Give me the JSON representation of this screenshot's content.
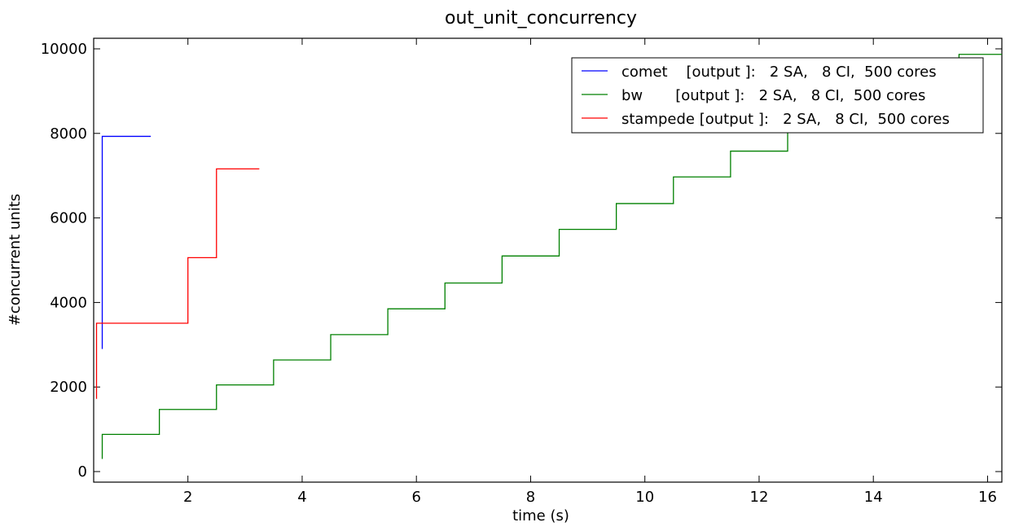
{
  "chart_data": {
    "type": "line",
    "title": "out_unit_concurrency",
    "xlabel": "time (s)",
    "ylabel": "#concurrent units",
    "xlim": [
      0.35,
      16.25
    ],
    "ylim": [
      -250,
      10250
    ],
    "xticks": [
      2,
      4,
      6,
      8,
      10,
      12,
      14,
      16
    ],
    "yticks": [
      0,
      2000,
      4000,
      6000,
      8000,
      10000
    ],
    "grid": false,
    "legend_position": "top-right",
    "step": "post",
    "series": [
      {
        "name": "comet    [output ]:   2 SA,   8 CI,  500 cores",
        "color": "#0000ff",
        "x": [
          0.5,
          0.5,
          1.35
        ],
        "y": [
          2900,
          7930,
          7930
        ]
      },
      {
        "name": "bw       [output ]:   2 SA,   8 CI,  500 cores",
        "color": "#008000",
        "x": [
          0.5,
          0.5,
          1.5,
          2.5,
          3.5,
          4.5,
          5.5,
          6.5,
          7.5,
          8.5,
          9.5,
          10.5,
          11.5,
          12.5,
          13.5,
          14.5,
          15.5,
          16.25
        ],
        "y": [
          300,
          880,
          1470,
          2050,
          2640,
          3240,
          3850,
          4460,
          5100,
          5730,
          6340,
          6970,
          7580,
          8200,
          8800,
          9400,
          9870,
          9870
        ]
      },
      {
        "name": "stampede [output ]:   2 SA,   8 CI,  500 cores",
        "color": "#ff0000",
        "x": [
          0.4,
          0.4,
          2.0,
          2.5,
          3.25
        ],
        "y": [
          1720,
          3510,
          5060,
          7160,
          7160
        ]
      }
    ]
  }
}
